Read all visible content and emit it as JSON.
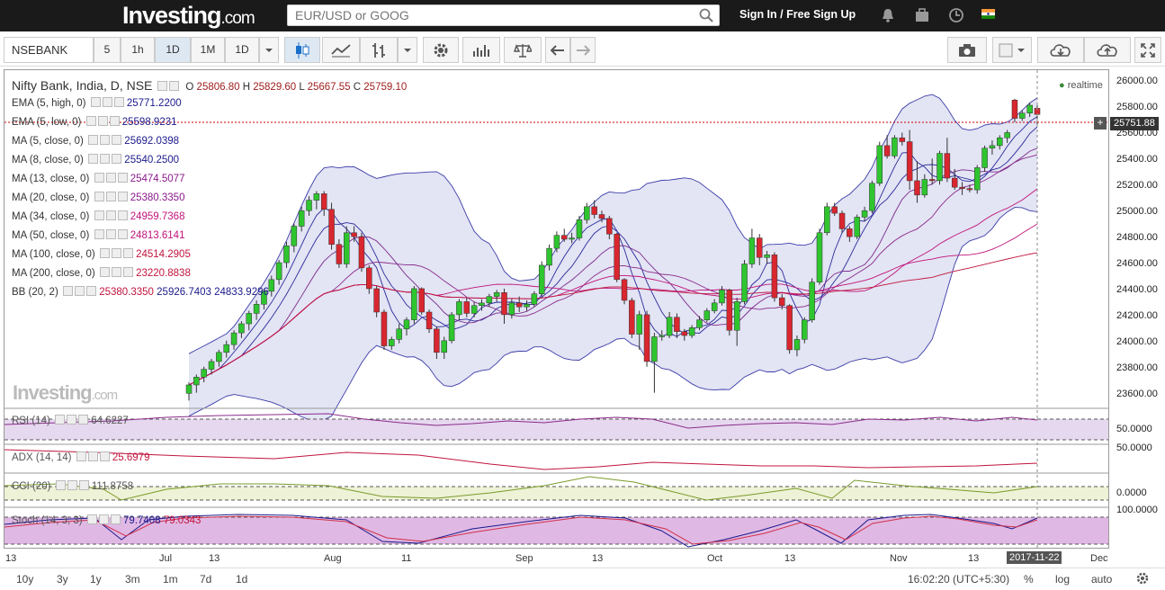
{
  "header": {
    "logo_main": "Investing",
    "logo_suffix": ".com",
    "search_placeholder": "EUR/USD or GOOG",
    "signin": "Sign In / Free Sign Up"
  },
  "toolbar": {
    "symbol": "NSEBANK",
    "intervals": [
      "5",
      "1h",
      "1D",
      "1M",
      "1D"
    ],
    "active_interval": "1D"
  },
  "main": {
    "title": "Nifty Bank, India, D, NSE",
    "ohlc": {
      "o_label": "O",
      "o": "25806.80",
      "h_label": "H",
      "h": "25829.60",
      "l_label": "L",
      "l": "25667.55",
      "c_label": "C",
      "c": "25759.10"
    },
    "realtime": "realtime",
    "last_price": "25751.88",
    "indicators": [
      {
        "name": "EMA (5, high, 0)",
        "value": "25771.2200",
        "color": "#1a1a8c"
      },
      {
        "name": "EMA (5, low, 0)",
        "value": "25598.9231",
        "color": "#1a1a8c"
      },
      {
        "name": "MA (5, close, 0)",
        "value": "25692.0398",
        "color": "#1a1a8c"
      },
      {
        "name": "MA (8, close, 0)",
        "value": "25540.2500",
        "color": "#1a1a8c"
      },
      {
        "name": "MA (13, close, 0)",
        "value": "25474.5077",
        "color": "#8a1a8a"
      },
      {
        "name": "MA (20, close, 0)",
        "value": "25380.3350",
        "color": "#8a1a8a"
      },
      {
        "name": "MA (34, close, 0)",
        "value": "24959.7368",
        "color": "#c0147a"
      },
      {
        "name": "MA (50, close, 0)",
        "value": "24813.6141",
        "color": "#c0147a"
      },
      {
        "name": "MA (100, close, 0)",
        "value": "24514.2905",
        "color": "#c0143c"
      },
      {
        "name": "MA (200, close, 0)",
        "value": "23220.8838",
        "color": "#c0143c"
      }
    ],
    "bb": {
      "name": "BB (20, 2)",
      "v1": "25380.3350",
      "v2": "25926.7403",
      "v3": "24833.9296"
    },
    "price_ticks": [
      "26000.00",
      "25800.00",
      "25600.00",
      "25400.00",
      "25200.00",
      "25000.00",
      "24800.00",
      "24600.00",
      "24400.00",
      "24200.00",
      "24000.00",
      "23800.00",
      "23600.00"
    ]
  },
  "panes": {
    "rsi": {
      "name": "RSI (14)",
      "value": "64.6227",
      "tick": "50.0000"
    },
    "adx": {
      "name": "ADX (14, 14)",
      "value": "25.6979",
      "tick": "50.0000"
    },
    "cci": {
      "name": "CCI (20)",
      "value": "111.8758",
      "tick": "0.0000"
    },
    "stoch": {
      "name": "Stoch (14, 3, 3)",
      "v1": "79.7408",
      "v2": "79.0343",
      "tick": "100.0000"
    }
  },
  "xaxis": {
    "labels": [
      "13",
      "Jul",
      "13",
      "Aug",
      "11",
      "Sep",
      "13",
      "Oct",
      "13",
      "Nov",
      "13",
      "Dec"
    ],
    "current": "2017-11-22"
  },
  "bottom": {
    "ranges": [
      "10y",
      "3y",
      "1y",
      "3m",
      "1m",
      "7d",
      "1d"
    ],
    "time": "16:02:20 (UTC+5:30)",
    "pct": "%",
    "log": "log",
    "auto": "auto"
  },
  "watermark": {
    "main": "Investing",
    "suffix": ".com"
  },
  "chart_data": {
    "type": "candlestick",
    "ylim": [
      23500,
      26100
    ],
    "candles": [
      [
        23615,
        23700,
        23560,
        23680
      ],
      [
        23680,
        23760,
        23620,
        23740
      ],
      [
        23740,
        23820,
        23700,
        23800
      ],
      [
        23800,
        23880,
        23760,
        23860
      ],
      [
        23860,
        23950,
        23820,
        23930
      ],
      [
        23930,
        24020,
        23890,
        23990
      ],
      [
        23990,
        24100,
        23950,
        24080
      ],
      [
        24080,
        24170,
        24040,
        24150
      ],
      [
        24150,
        24250,
        24100,
        24230
      ],
      [
        24230,
        24330,
        24180,
        24300
      ],
      [
        24300,
        24420,
        24260,
        24400
      ],
      [
        24400,
        24520,
        24360,
        24490
      ],
      [
        24490,
        24640,
        24450,
        24620
      ],
      [
        24620,
        24780,
        24580,
        24750
      ],
      [
        24750,
        24920,
        24700,
        24900
      ],
      [
        24900,
        25050,
        24860,
        25020
      ],
      [
        25020,
        25130,
        24980,
        25100
      ],
      [
        25100,
        25170,
        25030,
        25150
      ],
      [
        25150,
        25170,
        24980,
        25030
      ],
      [
        25030,
        25080,
        24720,
        24760
      ],
      [
        24760,
        24800,
        24580,
        24610
      ],
      [
        24610,
        24900,
        24580,
        24850
      ],
      [
        24850,
        24900,
        24780,
        24820
      ],
      [
        24820,
        24850,
        24550,
        24580
      ],
      [
        24580,
        24600,
        24380,
        24420
      ],
      [
        24420,
        24440,
        24200,
        24240
      ],
      [
        24240,
        24260,
        23950,
        23980
      ],
      [
        23980,
        24050,
        23950,
        24030
      ],
      [
        24030,
        24150,
        24000,
        24110
      ],
      [
        24110,
        24200,
        24060,
        24180
      ],
      [
        24180,
        24440,
        24150,
        24420
      ],
      [
        24420,
        24430,
        24220,
        24240
      ],
      [
        24240,
        24260,
        24080,
        24110
      ],
      [
        24110,
        24130,
        23880,
        23930
      ],
      [
        23930,
        24050,
        23880,
        24020
      ],
      [
        24020,
        24240,
        24000,
        24220
      ],
      [
        24220,
        24340,
        24180,
        24320
      ],
      [
        24320,
        24350,
        24200,
        24230
      ],
      [
        24230,
        24320,
        24200,
        24290
      ],
      [
        24290,
        24340,
        24250,
        24310
      ],
      [
        24310,
        24380,
        24280,
        24360
      ],
      [
        24360,
        24410,
        24320,
        24390
      ],
      [
        24390,
        24420,
        24150,
        24220
      ],
      [
        24220,
        24340,
        24190,
        24310
      ],
      [
        24310,
        24360,
        24240,
        24280
      ],
      [
        24280,
        24330,
        24250,
        24300
      ],
      [
        24300,
        24400,
        24280,
        24380
      ],
      [
        24380,
        24630,
        24360,
        24600
      ],
      [
        24600,
        24760,
        24560,
        24730
      ],
      [
        24730,
        24860,
        24700,
        24830
      ],
      [
        24830,
        24880,
        24780,
        24800
      ],
      [
        24800,
        24850,
        24770,
        24810
      ],
      [
        24810,
        24980,
        24790,
        24950
      ],
      [
        24950,
        25080,
        24920,
        25050
      ],
      [
        25050,
        25100,
        24960,
        24990
      ],
      [
        24990,
        25020,
        24930,
        24960
      ],
      [
        24960,
        24980,
        24800,
        24840
      ],
      [
        24840,
        24850,
        24470,
        24490
      ],
      [
        24490,
        24500,
        24300,
        24330
      ],
      [
        24330,
        24350,
        24040,
        24070
      ],
      [
        24070,
        24250,
        23950,
        24220
      ],
      [
        24220,
        24250,
        23820,
        23860
      ],
      [
        23860,
        24080,
        23620,
        24050
      ],
      [
        24050,
        24100,
        24020,
        24060
      ],
      [
        24060,
        24240,
        24040,
        24200
      ],
      [
        24200,
        24230,
        24040,
        24090
      ],
      [
        24090,
        24110,
        24020,
        24060
      ],
      [
        24060,
        24140,
        24040,
        24120
      ],
      [
        24120,
        24210,
        24100,
        24180
      ],
      [
        24180,
        24270,
        24160,
        24250
      ],
      [
        24250,
        24340,
        24230,
        24310
      ],
      [
        24310,
        24440,
        24290,
        24410
      ],
      [
        24410,
        24420,
        24060,
        24100
      ],
      [
        24100,
        24350,
        23980,
        24320
      ],
      [
        24320,
        24640,
        24300,
        24610
      ],
      [
        24610,
        24880,
        24580,
        24810
      ],
      [
        24810,
        24840,
        24600,
        24660
      ],
      [
        24660,
        24710,
        24610,
        24680
      ],
      [
        24680,
        24700,
        24320,
        24350
      ],
      [
        24350,
        24380,
        24260,
        24290
      ],
      [
        24290,
        24300,
        23920,
        23950
      ],
      [
        23950,
        24060,
        23900,
        24030
      ],
      [
        24030,
        24200,
        24000,
        24180
      ],
      [
        24180,
        24500,
        24160,
        24470
      ],
      [
        24470,
        24880,
        24450,
        24850
      ],
      [
        24850,
        25080,
        24830,
        25050
      ],
      [
        25050,
        25080,
        24980,
        25000
      ],
      [
        25000,
        25020,
        24850,
        24880
      ],
      [
        24880,
        24900,
        24780,
        24820
      ],
      [
        24820,
        24990,
        24800,
        24970
      ],
      [
        24970,
        25050,
        24940,
        25020
      ],
      [
        25020,
        25250,
        25000,
        25230
      ],
      [
        25230,
        25550,
        25210,
        25520
      ],
      [
        25520,
        25600,
        25420,
        25440
      ],
      [
        25440,
        25600,
        25420,
        25580
      ],
      [
        25580,
        25620,
        25520,
        25550
      ],
      [
        25550,
        25640,
        25180,
        25250
      ],
      [
        25250,
        25400,
        25080,
        25140
      ],
      [
        25140,
        25300,
        25120,
        25260
      ],
      [
        25260,
        25420,
        25220,
        25250
      ],
      [
        25250,
        25480,
        25220,
        25460
      ],
      [
        25460,
        25580,
        25240,
        25270
      ],
      [
        25270,
        25340,
        25180,
        25200
      ],
      [
        25200,
        25240,
        25140,
        25190
      ],
      [
        25190,
        25220,
        25160,
        25180
      ],
      [
        25180,
        25370,
        25150,
        25350
      ],
      [
        25350,
        25520,
        25320,
        25500
      ],
      [
        25500,
        25560,
        25450,
        25520
      ],
      [
        25520,
        25600,
        25490,
        25580
      ],
      [
        25580,
        25640,
        25540,
        25620
      ],
      [
        25870,
        25880,
        25700,
        25730
      ],
      [
        25730,
        25790,
        25710,
        25770
      ],
      [
        25770,
        25850,
        25740,
        25830
      ],
      [
        25806.8,
        25829.6,
        25667.55,
        25759.1
      ]
    ]
  }
}
